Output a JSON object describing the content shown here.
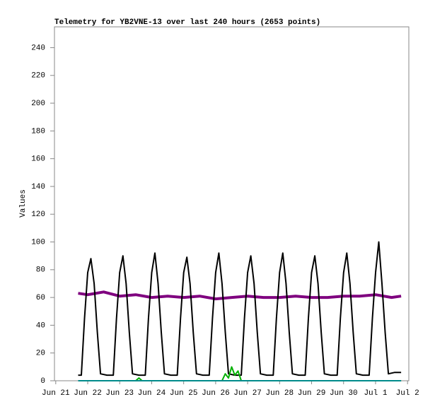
{
  "chart_data": {
    "type": "line",
    "title": "Telemetry for YB2VNE-13 over last 240 hours (2653 points)",
    "y_label": "Values",
    "xlim": [
      20.96,
      32.04
    ],
    "xticks": [
      {
        "value": 21,
        "label": "Jun 21"
      },
      {
        "value": 22,
        "label": "Jun 22"
      },
      {
        "value": 23,
        "label": "Jun 23"
      },
      {
        "value": 24,
        "label": "Jun 24"
      },
      {
        "value": 25,
        "label": "Jun 25"
      },
      {
        "value": 26,
        "label": "Jun 26"
      },
      {
        "value": 27,
        "label": "Jun 27"
      },
      {
        "value": 28,
        "label": "Jun 28"
      },
      {
        "value": 29,
        "label": "Jun 29"
      },
      {
        "value": 30,
        "label": "Jun 30"
      },
      {
        "value": 31,
        "label": "Jul 1"
      },
      {
        "value": 32,
        "label": "Jul 2"
      }
    ],
    "ylim": [
      0,
      255
    ],
    "yticks": [
      0,
      20,
      40,
      60,
      80,
      100,
      120,
      140,
      160,
      180,
      200,
      220,
      240
    ],
    "series": [
      {
        "color": "#7f007f",
        "width": 4,
        "x": [
          21.7,
          22.0,
          22.5,
          23.0,
          23.5,
          24.0,
          24.5,
          25.0,
          25.5,
          26.0,
          26.5,
          27.0,
          27.5,
          28.0,
          28.5,
          29.0,
          29.5,
          30.0,
          30.5,
          31.0,
          31.5,
          31.8
        ],
        "values": [
          63,
          62,
          64,
          61,
          62,
          60,
          61,
          60,
          61,
          59,
          60,
          61,
          60,
          60,
          61,
          60,
          60,
          61,
          61,
          62,
          60,
          61
        ]
      },
      {
        "color": "#000000",
        "width": 2,
        "x": [
          21.7,
          21.8,
          21.9,
          22,
          22.1,
          22.2,
          22.3,
          22.4,
          22.6,
          22.8,
          22.9,
          23,
          23.1,
          23.2,
          23.3,
          23.4,
          23.6,
          23.8,
          23.9,
          24,
          24.1,
          24.2,
          24.3,
          24.4,
          24.6,
          24.8,
          24.9,
          25,
          25.1,
          25.2,
          25.3,
          25.4,
          25.6,
          25.8,
          25.9,
          26,
          26.1,
          26.2,
          26.3,
          26.4,
          26.6,
          26.8,
          26.9,
          27,
          27.1,
          27.2,
          27.3,
          27.4,
          27.6,
          27.8,
          27.9,
          28,
          28.1,
          28.2,
          28.3,
          28.4,
          28.6,
          28.8,
          28.9,
          29,
          29.1,
          29.2,
          29.3,
          29.4,
          29.6,
          29.8,
          29.9,
          30,
          30.1,
          30.2,
          30.3,
          30.4,
          30.6,
          30.8,
          30.9,
          31,
          31.1,
          31.2,
          31.3,
          31.4,
          31.6,
          31.8
        ],
        "values": [
          4,
          4,
          45,
          78,
          88,
          70,
          35,
          5,
          4,
          4,
          45,
          78,
          90,
          70,
          35,
          5,
          4,
          4,
          45,
          78,
          92,
          70,
          35,
          5,
          4,
          4,
          45,
          78,
          89,
          70,
          35,
          5,
          4,
          4,
          45,
          78,
          92,
          70,
          35,
          5,
          4,
          4,
          45,
          78,
          90,
          70,
          35,
          5,
          4,
          4,
          45,
          78,
          92,
          70,
          35,
          5,
          4,
          4,
          45,
          78,
          90,
          70,
          35,
          5,
          4,
          4,
          45,
          78,
          92,
          70,
          35,
          5,
          4,
          4,
          45,
          78,
          100,
          70,
          35,
          5,
          6,
          6
        ]
      },
      {
        "color": "#00b000",
        "width": 2,
        "x": [
          21.7,
          23.5,
          23.6,
          23.7,
          26.2,
          26.3,
          26.4,
          26.5,
          26.6,
          26.7,
          26.8,
          31.8
        ],
        "values": [
          0,
          0,
          2,
          0,
          0,
          5,
          2,
          10,
          4,
          7,
          0,
          0
        ]
      },
      {
        "color": "#008b8b",
        "width": 2,
        "x": [
          21.7,
          26.5,
          31.8
        ],
        "values": [
          0,
          0,
          0
        ]
      }
    ]
  }
}
